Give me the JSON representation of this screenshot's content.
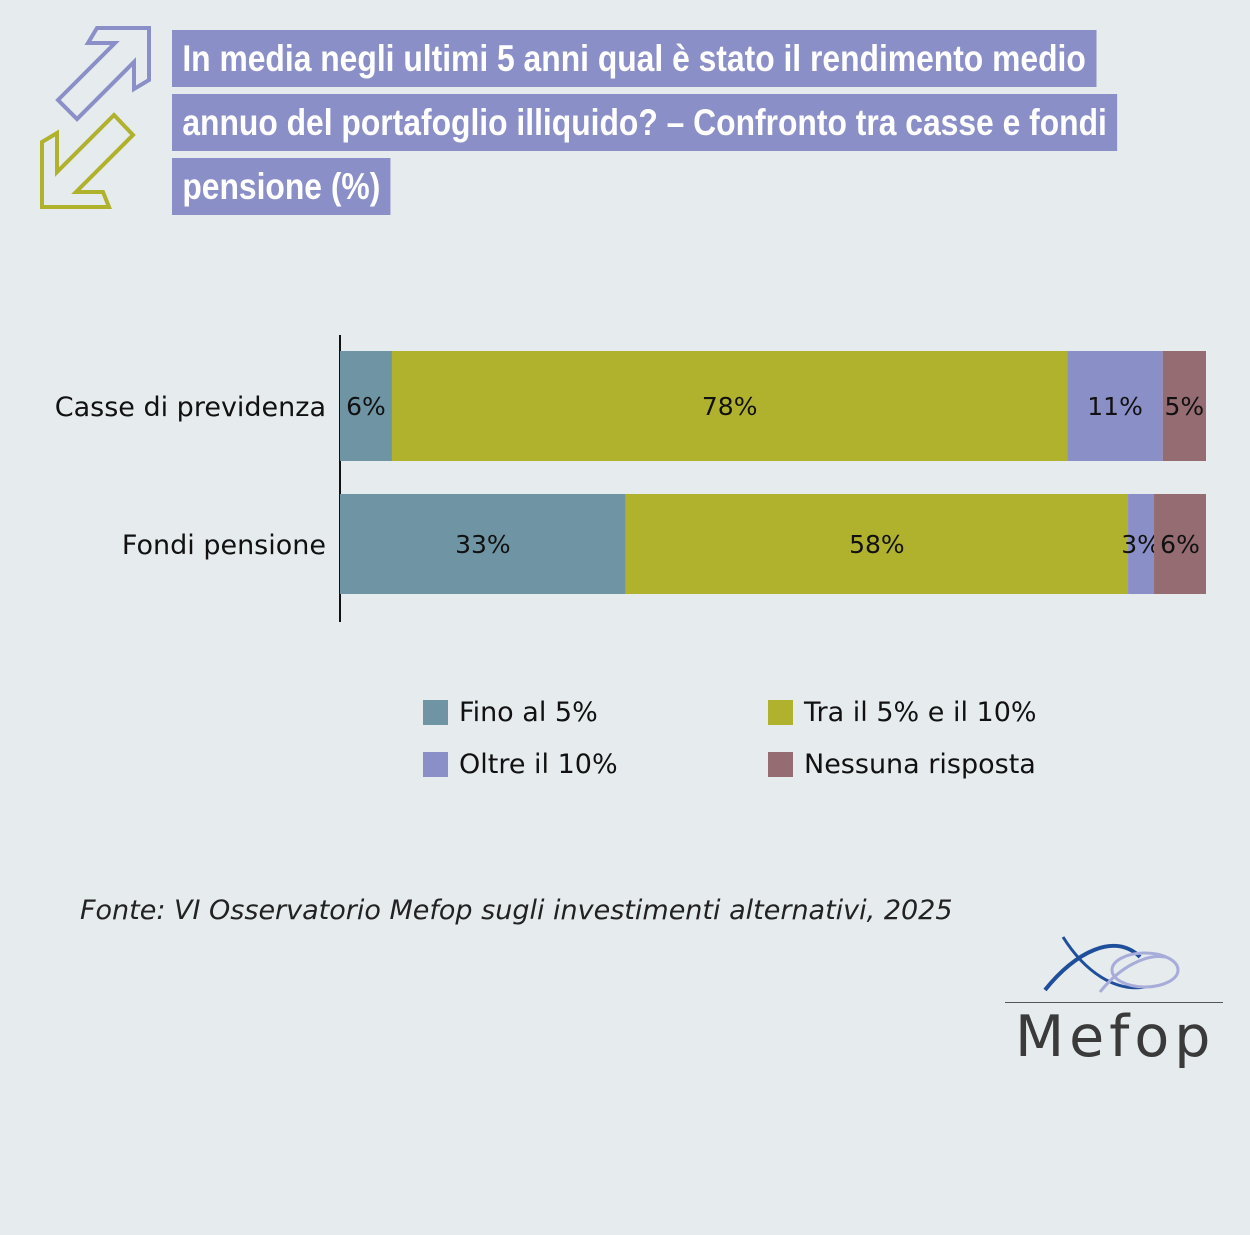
{
  "title": {
    "line1": "In media negli ultimi 5 anni qual è stato il rendimento medio",
    "line2": "annuo del portafoglio illiquido? – Confronto tra casse e fondi",
    "line3": "pensione (%)"
  },
  "icons": {
    "up": "arrow-up-right-icon",
    "down": "arrow-down-left-icon"
  },
  "colors": {
    "background": "#e6ebee",
    "title_bg": "#8b8fc7",
    "arrow_up": "#8b8fc7",
    "arrow_down": "#b0b22d"
  },
  "chart_data": {
    "type": "bar",
    "orientation": "horizontal",
    "stacked": true,
    "categories": [
      "Casse di previdenza",
      "Fondi pensione"
    ],
    "series": [
      {
        "name": "Fino al 5%",
        "color": "#6f95a5",
        "values": [
          6,
          33
        ]
      },
      {
        "name": "Tra il 5% e il 10%",
        "color": "#b0b22d",
        "values": [
          78,
          58
        ]
      },
      {
        "name": "Oltre il 10%",
        "color": "#8b8fc7",
        "values": [
          11,
          3
        ]
      },
      {
        "name": "Nessuna risposta",
        "color": "#946c72",
        "values": [
          5,
          6
        ]
      }
    ],
    "value_suffix": "%",
    "xlim": [
      0,
      100
    ],
    "grid": false,
    "legend": "bottom"
  },
  "source": "Fonte: VI Osservatorio Mefop sugli investimenti alternativi, 2025",
  "logo": {
    "text": "Mefop"
  }
}
